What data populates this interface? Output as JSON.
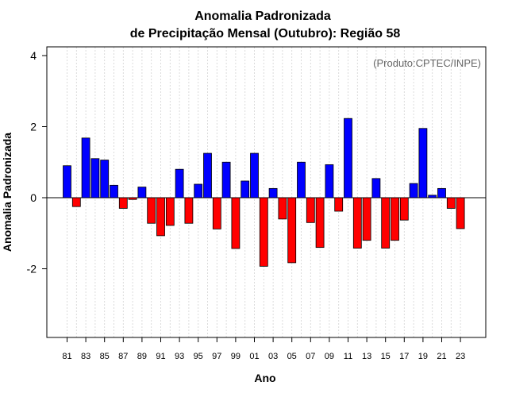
{
  "chart_data": {
    "type": "bar",
    "title_line1": "Anomalia Padronizada",
    "title_line2": "de Precipitação Mensal (Outubro): Região 58",
    "xlabel": "Ano",
    "ylabel": "Anomalia Padronizada",
    "credit": "(Produto:CPTEC/INPE)",
    "ylim": [
      -4,
      4.3
    ],
    "yticks": [
      4,
      2,
      0,
      -2
    ],
    "ytick_labels": [
      "4",
      "2",
      "0",
      "-2"
    ],
    "years": [
      "81",
      "82",
      "83",
      "84",
      "85",
      "86",
      "87",
      "88",
      "89",
      "90",
      "91",
      "92",
      "93",
      "94",
      "95",
      "96",
      "97",
      "98",
      "99",
      "00",
      "01",
      "02",
      "03",
      "04",
      "05",
      "06",
      "07",
      "08",
      "09",
      "10",
      "11",
      "12",
      "13",
      "14",
      "15",
      "16",
      "17",
      "18",
      "19",
      "20",
      "21",
      "22",
      "23"
    ],
    "xtick_labels": [
      "81",
      "83",
      "85",
      "87",
      "89",
      "91",
      "93",
      "95",
      "97",
      "99",
      "01",
      "03",
      "05",
      "07",
      "09",
      "11",
      "13",
      "15",
      "17",
      "19",
      "21",
      "23"
    ],
    "values": [
      0.9,
      -0.25,
      1.68,
      1.1,
      1.06,
      0.35,
      -0.3,
      -0.05,
      0.3,
      -0.72,
      -1.07,
      -0.78,
      0.8,
      -0.72,
      0.38,
      1.25,
      -0.88,
      1.0,
      -1.43,
      0.47,
      1.25,
      -1.93,
      0.26,
      -0.6,
      -1.83,
      1.0,
      -0.7,
      -1.4,
      0.93,
      -0.38,
      2.23,
      -1.42,
      -1.2,
      0.54,
      -1.42,
      -1.2,
      -0.63,
      0.4,
      1.95,
      0.07,
      0.26,
      -0.3,
      -0.87
    ],
    "positive_color": "#0000ff",
    "negative_color": "#ff0000"
  }
}
